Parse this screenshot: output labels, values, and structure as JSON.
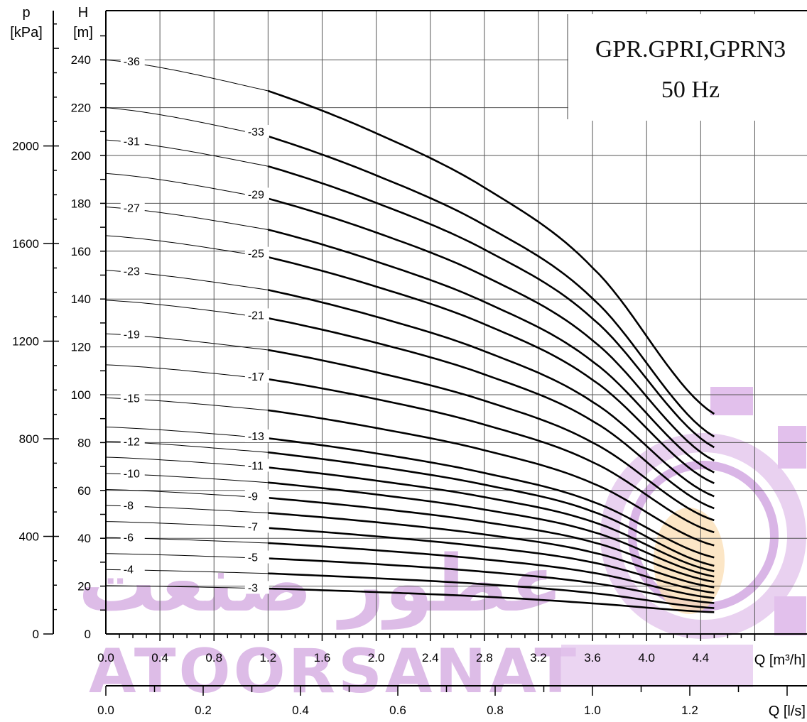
{
  "chart_data": {
    "type": "line",
    "title": [
      "GPR.GPRI,GPRN3",
      "50 Hz"
    ],
    "xlabel": "Q [m³/h]",
    "x2label": "Q [l/s]",
    "ylabel_h": [
      "H",
      "[m]"
    ],
    "ylabel_p": [
      "p",
      "[kPa]"
    ],
    "xlim": [
      0,
      4.95
    ],
    "ylim": [
      0,
      260
    ],
    "x_ticks": [
      "0.0",
      "0.4",
      "0.8",
      "1.2",
      "1.6",
      "2.0",
      "2.4",
      "2.8",
      "3.2",
      "3.6",
      "4.0",
      "4.4"
    ],
    "x2_ticks": [
      "0.0",
      "0.2",
      "0.4",
      "0.6",
      "0.8",
      "1.0",
      "1.2"
    ],
    "h_ticks": [
      "0",
      "20",
      "40",
      "60",
      "80",
      "100",
      "120",
      "140",
      "160",
      "180",
      "200",
      "220",
      "240"
    ],
    "p_ticks": [
      "0",
      "400",
      "800",
      "1200",
      "1600",
      "2000"
    ],
    "grid": true,
    "legend": "inline labels on curves",
    "curve_color": "#000000",
    "watermark_color": "#d2a6df",
    "series": [
      {
        "name": "-3",
        "x": [
          0,
          1.2,
          2.0,
          2.8,
          3.6,
          4.5
        ],
        "y": [
          20.2,
          19.0,
          17.5,
          15.6,
          12.8,
          9.1
        ]
      },
      {
        "name": "-4",
        "x": [
          0,
          1.2,
          2.0,
          2.8,
          3.6,
          4.5
        ],
        "y": [
          26.9,
          25.3,
          23.3,
          20.8,
          17.1,
          10.8
        ]
      },
      {
        "name": "-5",
        "x": [
          0,
          1.2,
          2.0,
          2.8,
          3.6,
          4.5
        ],
        "y": [
          33.6,
          31.6,
          29.2,
          26.0,
          21.3,
          12.9
        ]
      },
      {
        "name": "-6",
        "x": [
          0,
          1.2,
          2.0,
          2.8,
          3.6,
          4.5
        ],
        "y": [
          40.3,
          38.0,
          35.0,
          31.2,
          25.6,
          15.0
        ]
      },
      {
        "name": "-7",
        "x": [
          0,
          1.2,
          2.0,
          2.8,
          3.6,
          4.5
        ],
        "y": [
          47.0,
          44.3,
          40.8,
          36.4,
          29.9,
          17.2
        ]
      },
      {
        "name": "-8",
        "x": [
          0,
          1.2,
          2.0,
          2.8,
          3.6,
          4.5
        ],
        "y": [
          53.7,
          50.6,
          46.7,
          41.6,
          34.1,
          19.5
        ]
      },
      {
        "name": "-9",
        "x": [
          0,
          1.2,
          2.0,
          2.8,
          3.6,
          4.5
        ],
        "y": [
          60.4,
          56.9,
          52.5,
          46.8,
          38.4,
          21.8
        ]
      },
      {
        "name": "-10",
        "x": [
          0,
          1.2,
          2.0,
          2.8,
          3.6,
          4.5
        ],
        "y": [
          67.1,
          63.3,
          58.3,
          52.0,
          42.7,
          24.0
        ]
      },
      {
        "name": "-11",
        "x": [
          0,
          1.2,
          2.0,
          2.8,
          3.6,
          4.5
        ],
        "y": [
          73.9,
          69.6,
          64.1,
          57.2,
          46.9,
          26.2
        ]
      },
      {
        "name": "-12",
        "x": [
          0,
          1.2,
          2.0,
          2.8,
          3.6,
          4.5
        ],
        "y": [
          80.6,
          75.9,
          70.0,
          62.4,
          51.2,
          28.5
        ]
      },
      {
        "name": "-13",
        "x": [
          0,
          1.2,
          2.0,
          2.8,
          3.6,
          4.5
        ],
        "y": [
          86.5,
          81.8,
          75.5,
          67.3,
          55.3,
          32.0
        ]
      },
      {
        "name": "-15",
        "x": [
          0,
          1.2,
          2.0,
          2.8,
          3.6,
          4.5
        ],
        "y": [
          98.7,
          93.5,
          86.1,
          76.8,
          63.0,
          37.0
        ]
      },
      {
        "name": "-17",
        "x": [
          0,
          1.2,
          2.0,
          2.8,
          3.6,
          4.5
        ],
        "y": [
          112.5,
          106.5,
          98.2,
          87.5,
          71.8,
          42.5
        ]
      },
      {
        "name": "-19",
        "x": [
          0,
          1.2,
          2.0,
          2.8,
          3.6,
          4.5
        ],
        "y": [
          125.5,
          118.7,
          109.4,
          97.5,
          80.0,
          47.5
        ]
      },
      {
        "name": "-21",
        "x": [
          0,
          1.2,
          2.0,
          2.8,
          3.6,
          4.5
        ],
        "y": [
          139.5,
          132.0,
          121.7,
          108.5,
          89.0,
          52.5
        ]
      },
      {
        "name": "-23",
        "x": [
          0,
          1.2,
          2.0,
          2.8,
          3.6,
          4.5
        ],
        "y": [
          152.0,
          143.8,
          132.6,
          118.2,
          97.0,
          57.5
        ]
      },
      {
        "name": "-25",
        "x": [
          0,
          1.2,
          2.0,
          2.8,
          3.6,
          4.5
        ],
        "y": [
          166.5,
          157.5,
          145.2,
          129.5,
          106.2,
          63.0
        ]
      },
      {
        "name": "-27",
        "x": [
          0,
          1.2,
          2.0,
          2.8,
          3.6,
          4.5
        ],
        "y": [
          178.5,
          169.0,
          155.7,
          138.8,
          113.9,
          67.5
        ]
      },
      {
        "name": "-29",
        "x": [
          0,
          1.2,
          2.0,
          2.8,
          3.6,
          4.5
        ],
        "y": [
          192.5,
          182.0,
          167.8,
          149.6,
          122.7,
          72.5
        ]
      },
      {
        "name": "-31",
        "x": [
          0,
          1.2,
          2.0,
          2.8,
          3.6,
          4.5
        ],
        "y": [
          206.5,
          195.5,
          180.2,
          160.7,
          131.8,
          78.0
        ]
      },
      {
        "name": "-33",
        "x": [
          0,
          1.2,
          2.0,
          2.8,
          3.6,
          4.5
        ],
        "y": [
          220.0,
          208.0,
          191.7,
          170.9,
          140.2,
          82.5
        ]
      },
      {
        "name": "-36",
        "x": [
          0,
          1.2,
          2.0,
          2.8,
          3.6,
          4.5
        ],
        "y": [
          240.0,
          227.0,
          209.3,
          186.6,
          153.1,
          92.0
        ]
      }
    ],
    "label_positions": [
      {
        "name": "-3",
        "x": 1.05
      },
      {
        "name": "-4",
        "x": 0.13
      },
      {
        "name": "-5",
        "x": 1.05
      },
      {
        "name": "-6",
        "x": 0.13
      },
      {
        "name": "-7",
        "x": 1.05
      },
      {
        "name": "-8",
        "x": 0.13
      },
      {
        "name": "-9",
        "x": 1.05
      },
      {
        "name": "-10",
        "x": 0.13
      },
      {
        "name": "-11",
        "x": 1.05
      },
      {
        "name": "-12",
        "x": 0.13
      },
      {
        "name": "-13",
        "x": 1.05
      },
      {
        "name": "-15",
        "x": 0.13
      },
      {
        "name": "-17",
        "x": 1.05
      },
      {
        "name": "-19",
        "x": 0.13
      },
      {
        "name": "-21",
        "x": 1.05
      },
      {
        "name": "-23",
        "x": 0.13
      },
      {
        "name": "-25",
        "x": 1.05
      },
      {
        "name": "-27",
        "x": 0.13
      },
      {
        "name": "-29",
        "x": 1.05
      },
      {
        "name": "-31",
        "x": 0.13
      },
      {
        "name": "-33",
        "x": 1.05
      },
      {
        "name": "-36",
        "x": 0.13
      }
    ]
  },
  "watermark": {
    "text": "ATOORSANAT",
    "logo": "gear-flame-logo-icon",
    "script_text": "عطور صنعت"
  }
}
